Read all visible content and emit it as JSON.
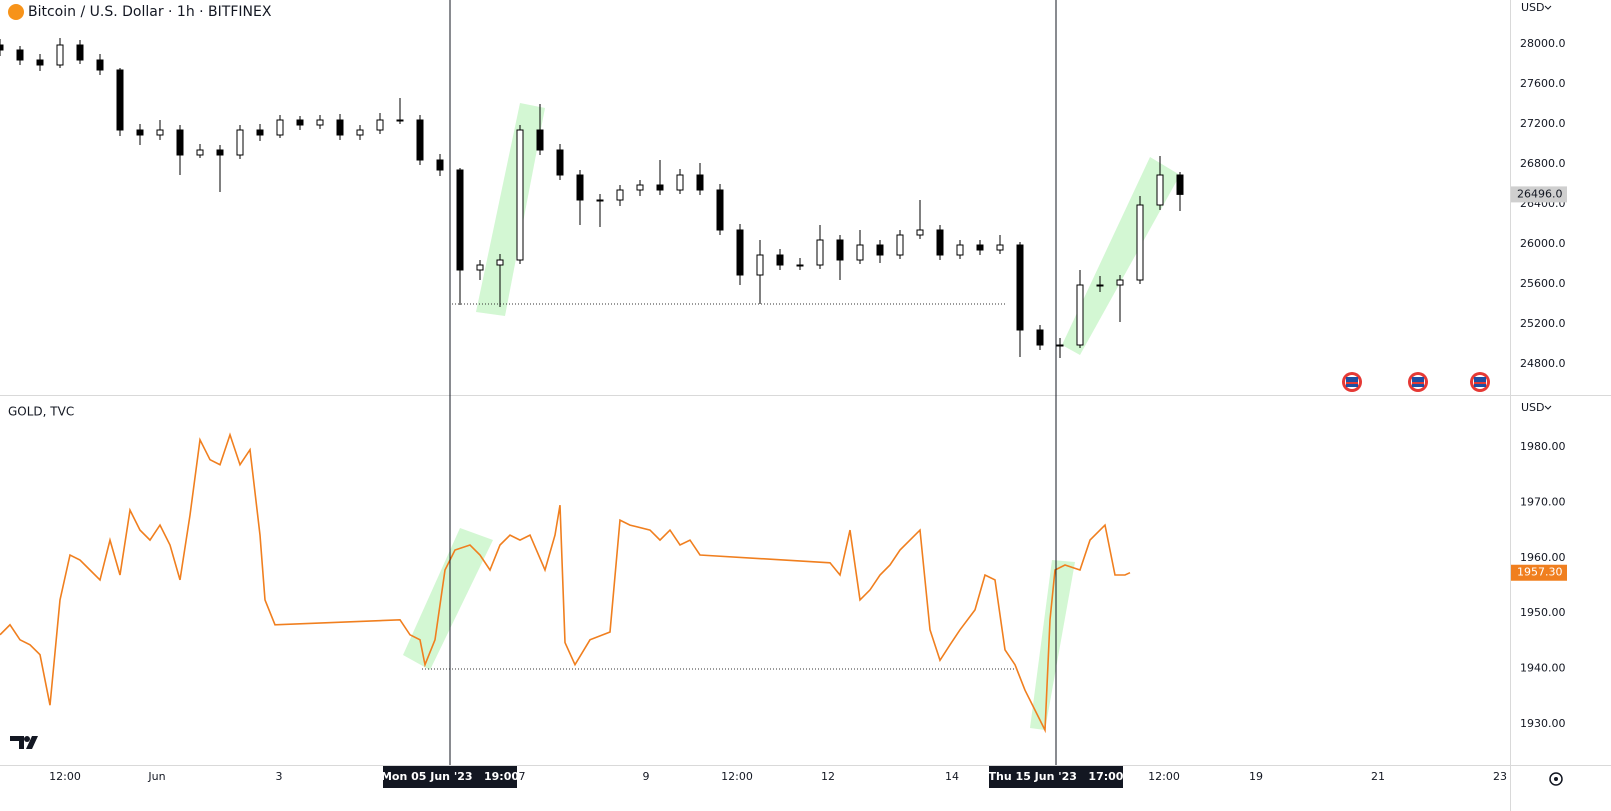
{
  "chart_data": [
    {
      "type": "candlestick",
      "title": "Bitcoin / U.S. Dollar · 1h · BITFINEX",
      "currency": "USD",
      "color": "#000000",
      "up_color": "#ffffff",
      "down_color": "#000000",
      "xlim": [
        0,
        151
      ],
      "ylim": [
        24490,
        28440
      ],
      "yticks": [
        {
          "value": 24800,
          "label": "24800.0"
        },
        {
          "value": 25200,
          "label": "25200.0"
        },
        {
          "value": 25600,
          "label": "25600.0"
        },
        {
          "value": 26000,
          "label": "26000.0"
        },
        {
          "value": 26400,
          "label": "26400.0"
        },
        {
          "value": 26800,
          "label": "26800.0"
        },
        {
          "value": 27200,
          "label": "27200.0"
        },
        {
          "value": 27600,
          "label": "27600.0"
        },
        {
          "value": 28000,
          "label": "28000.0"
        }
      ],
      "grid": false,
      "last_price": {
        "value": 26496,
        "label": "26496.0"
      },
      "last_price_color": "#cfcfcf",
      "x": [
        0,
        2,
        4,
        6,
        8,
        10,
        12,
        14,
        16,
        18,
        20,
        22,
        24,
        26,
        28,
        30,
        32,
        34,
        36,
        38,
        40,
        42,
        44,
        46,
        48,
        50,
        52,
        54,
        56,
        58,
        60,
        62,
        64,
        66,
        68,
        70,
        72,
        74,
        76,
        78,
        80,
        82,
        84,
        86,
        88,
        90,
        92,
        94,
        96,
        98,
        100,
        102,
        104,
        106,
        108,
        110,
        112,
        114,
        116,
        118
      ],
      "candles": [
        [
          27990,
          28050,
          27880,
          27940
        ],
        [
          27940,
          27980,
          27790,
          27840
        ],
        [
          27840,
          27900,
          27730,
          27790
        ],
        [
          27790,
          28060,
          27760,
          27990
        ],
        [
          27990,
          28040,
          27800,
          27840
        ],
        [
          27840,
          27900,
          27690,
          27740
        ],
        [
          27740,
          27760,
          27080,
          27140
        ],
        [
          27140,
          27200,
          26990,
          27090
        ],
        [
          27090,
          27240,
          27040,
          27140
        ],
        [
          27140,
          27190,
          26690,
          26890
        ],
        [
          26890,
          27000,
          26860,
          26940
        ],
        [
          26940,
          26990,
          26520,
          26890
        ],
        [
          26890,
          27190,
          26850,
          27140
        ],
        [
          27140,
          27200,
          27030,
          27090
        ],
        [
          27090,
          27290,
          27060,
          27240
        ],
        [
          27240,
          27280,
          27140,
          27190
        ],
        [
          27190,
          27290,
          27150,
          27240
        ],
        [
          27240,
          27300,
          27040,
          27090
        ],
        [
          27090,
          27190,
          27040,
          27140
        ],
        [
          27140,
          27310,
          27100,
          27240
        ],
        [
          27240,
          27460,
          27200,
          27240
        ],
        [
          27240,
          27290,
          26790,
          26840
        ],
        [
          26840,
          26900,
          26680,
          26740
        ],
        [
          26740,
          26760,
          25390,
          25740
        ],
        [
          25740,
          25840,
          25640,
          25790
        ],
        [
          25790,
          25900,
          25370,
          25840
        ],
        [
          25840,
          27190,
          25800,
          27140
        ],
        [
          27140,
          27400,
          26890,
          26940
        ],
        [
          26940,
          27000,
          26640,
          26690
        ],
        [
          26690,
          26740,
          26190,
          26440
        ],
        [
          26440,
          26500,
          26170,
          26440
        ],
        [
          26440,
          26590,
          26380,
          26540
        ],
        [
          26540,
          26640,
          26480,
          26590
        ],
        [
          26590,
          26840,
          26490,
          26540
        ],
        [
          26540,
          26750,
          26500,
          26690
        ],
        [
          26690,
          26810,
          26490,
          26540
        ],
        [
          26540,
          26600,
          26090,
          26140
        ],
        [
          26140,
          26200,
          25590,
          25690
        ],
        [
          25690,
          26040,
          25400,
          25890
        ],
        [
          25890,
          25950,
          25740,
          25790
        ],
        [
          25790,
          25860,
          25740,
          25790
        ],
        [
          25790,
          26190,
          25750,
          26040
        ],
        [
          26040,
          26090,
          25640,
          25840
        ],
        [
          25840,
          26140,
          25800,
          25990
        ],
        [
          25990,
          26040,
          25810,
          25890
        ],
        [
          25890,
          26140,
          25850,
          26090
        ],
        [
          26090,
          26440,
          26050,
          26140
        ],
        [
          26140,
          26190,
          25840,
          25890
        ],
        [
          25890,
          26040,
          25850,
          25990
        ],
        [
          25990,
          26040,
          25890,
          25940
        ],
        [
          25940,
          26090,
          25900,
          25990
        ],
        [
          25990,
          26020,
          24870,
          25140
        ],
        [
          25140,
          25190,
          24940,
          24990
        ],
        [
          24990,
          25060,
          24860,
          24990
        ],
        [
          24990,
          25740,
          24960,
          25590
        ],
        [
          25590,
          25680,
          25520,
          25590
        ],
        [
          25590,
          25690,
          25220,
          25640
        ],
        [
          25640,
          26480,
          25600,
          26390
        ],
        [
          26390,
          26880,
          26340,
          26690
        ],
        [
          26690,
          26720,
          26330,
          26496
        ]
      ]
    },
    {
      "type": "line",
      "title": "GOLD, TVC",
      "currency": "USD",
      "color": "#f07f1f",
      "xlim": [
        0,
        151
      ],
      "ylim": [
        1922.6,
        1989.2
      ],
      "yticks": [
        {
          "value": 1930,
          "label": "1930.00"
        },
        {
          "value": 1940,
          "label": "1940.00"
        },
        {
          "value": 1950,
          "label": "1950.00"
        },
        {
          "value": 1960,
          "label": "1960.00"
        },
        {
          "value": 1970,
          "label": "1970.00"
        },
        {
          "value": 1980,
          "label": "1980.00"
        }
      ],
      "grid": false,
      "last_price": {
        "value": 1957.3,
        "label": "1957.30"
      },
      "xticks": [
        {
          "value": 6.5,
          "label": "12:00"
        },
        {
          "value": 15.7,
          "label": "Jun"
        },
        {
          "value": 27.9,
          "label": "3"
        },
        {
          "value": 52.2,
          "label": "7"
        },
        {
          "value": 64.6,
          "label": "9"
        },
        {
          "value": 73.7,
          "label": "12:00"
        },
        {
          "value": 82.8,
          "label": "12"
        },
        {
          "value": 95.2,
          "label": "14"
        },
        {
          "value": 116.4,
          "label": "12:00"
        },
        {
          "value": 125.6,
          "label": "19"
        },
        {
          "value": 137.8,
          "label": "21"
        },
        {
          "value": 150,
          "label": "23"
        }
      ],
      "crosshair_labels": [
        {
          "value": 45,
          "label": "Mon 05 Jun '23   19:00"
        },
        {
          "value": 105.6,
          "label": "Thu 15 Jun '23   17:00"
        }
      ],
      "x": [
        0,
        1,
        2,
        3,
        4,
        5,
        6,
        7,
        8,
        9,
        10,
        11,
        12,
        13,
        14,
        15,
        16,
        17,
        18,
        19,
        20,
        21,
        22,
        23,
        24,
        25,
        26,
        26.5,
        27.5,
        40,
        41,
        42,
        42.5,
        43.5,
        44.5,
        45.5,
        47,
        48,
        49,
        50,
        51,
        52,
        53,
        54.5,
        55.5,
        56,
        56.5,
        57.5,
        59,
        61,
        62,
        63,
        65,
        66,
        67,
        68,
        69,
        70,
        83,
        84,
        85,
        86,
        87,
        88,
        89,
        90,
        91,
        92,
        93,
        94,
        95,
        96,
        97.5,
        98.5,
        99.5,
        100.5,
        101.5,
        102.5,
        103.5,
        104.5,
        105,
        105.5,
        106.5,
        108,
        109,
        110.5,
        111.5,
        112.5,
        113
      ],
      "values": [
        1946.1,
        1947.9,
        1945.2,
        1944.3,
        1942.5,
        1933.4,
        1952.4,
        1960.5,
        1959.6,
        1957.8,
        1956.0,
        1963.2,
        1956.9,
        1968.6,
        1965.0,
        1963.2,
        1965.9,
        1962.3,
        1956.0,
        1967.7,
        1981.3,
        1977.7,
        1976.8,
        1982.2,
        1976.8,
        1979.5,
        1964.1,
        1952.4,
        1947.9,
        1948.8,
        1946.1,
        1945.2,
        1940.7,
        1945.2,
        1957.8,
        1961.4,
        1962.3,
        1960.5,
        1957.8,
        1962.3,
        1964.1,
        1963.2,
        1964.1,
        1957.8,
        1964.1,
        1969.5,
        1944.7,
        1940.7,
        1945.2,
        1946.6,
        1966.8,
        1965.9,
        1965.0,
        1963.2,
        1965.0,
        1962.3,
        1963.2,
        1960.5,
        1959.1,
        1956.9,
        1965.0,
        1952.4,
        1954.2,
        1956.9,
        1958.7,
        1961.4,
        1963.2,
        1965.0,
        1947.0,
        1941.5,
        1944.3,
        1947.0,
        1950.6,
        1956.9,
        1956.0,
        1943.4,
        1940.7,
        1936.1,
        1932.5,
        1928.9,
        1948.8,
        1957.8,
        1958.7,
        1957.8,
        1963.2,
        1965.9,
        1956.9,
        1956.9,
        1957.3
      ]
    }
  ]
}
